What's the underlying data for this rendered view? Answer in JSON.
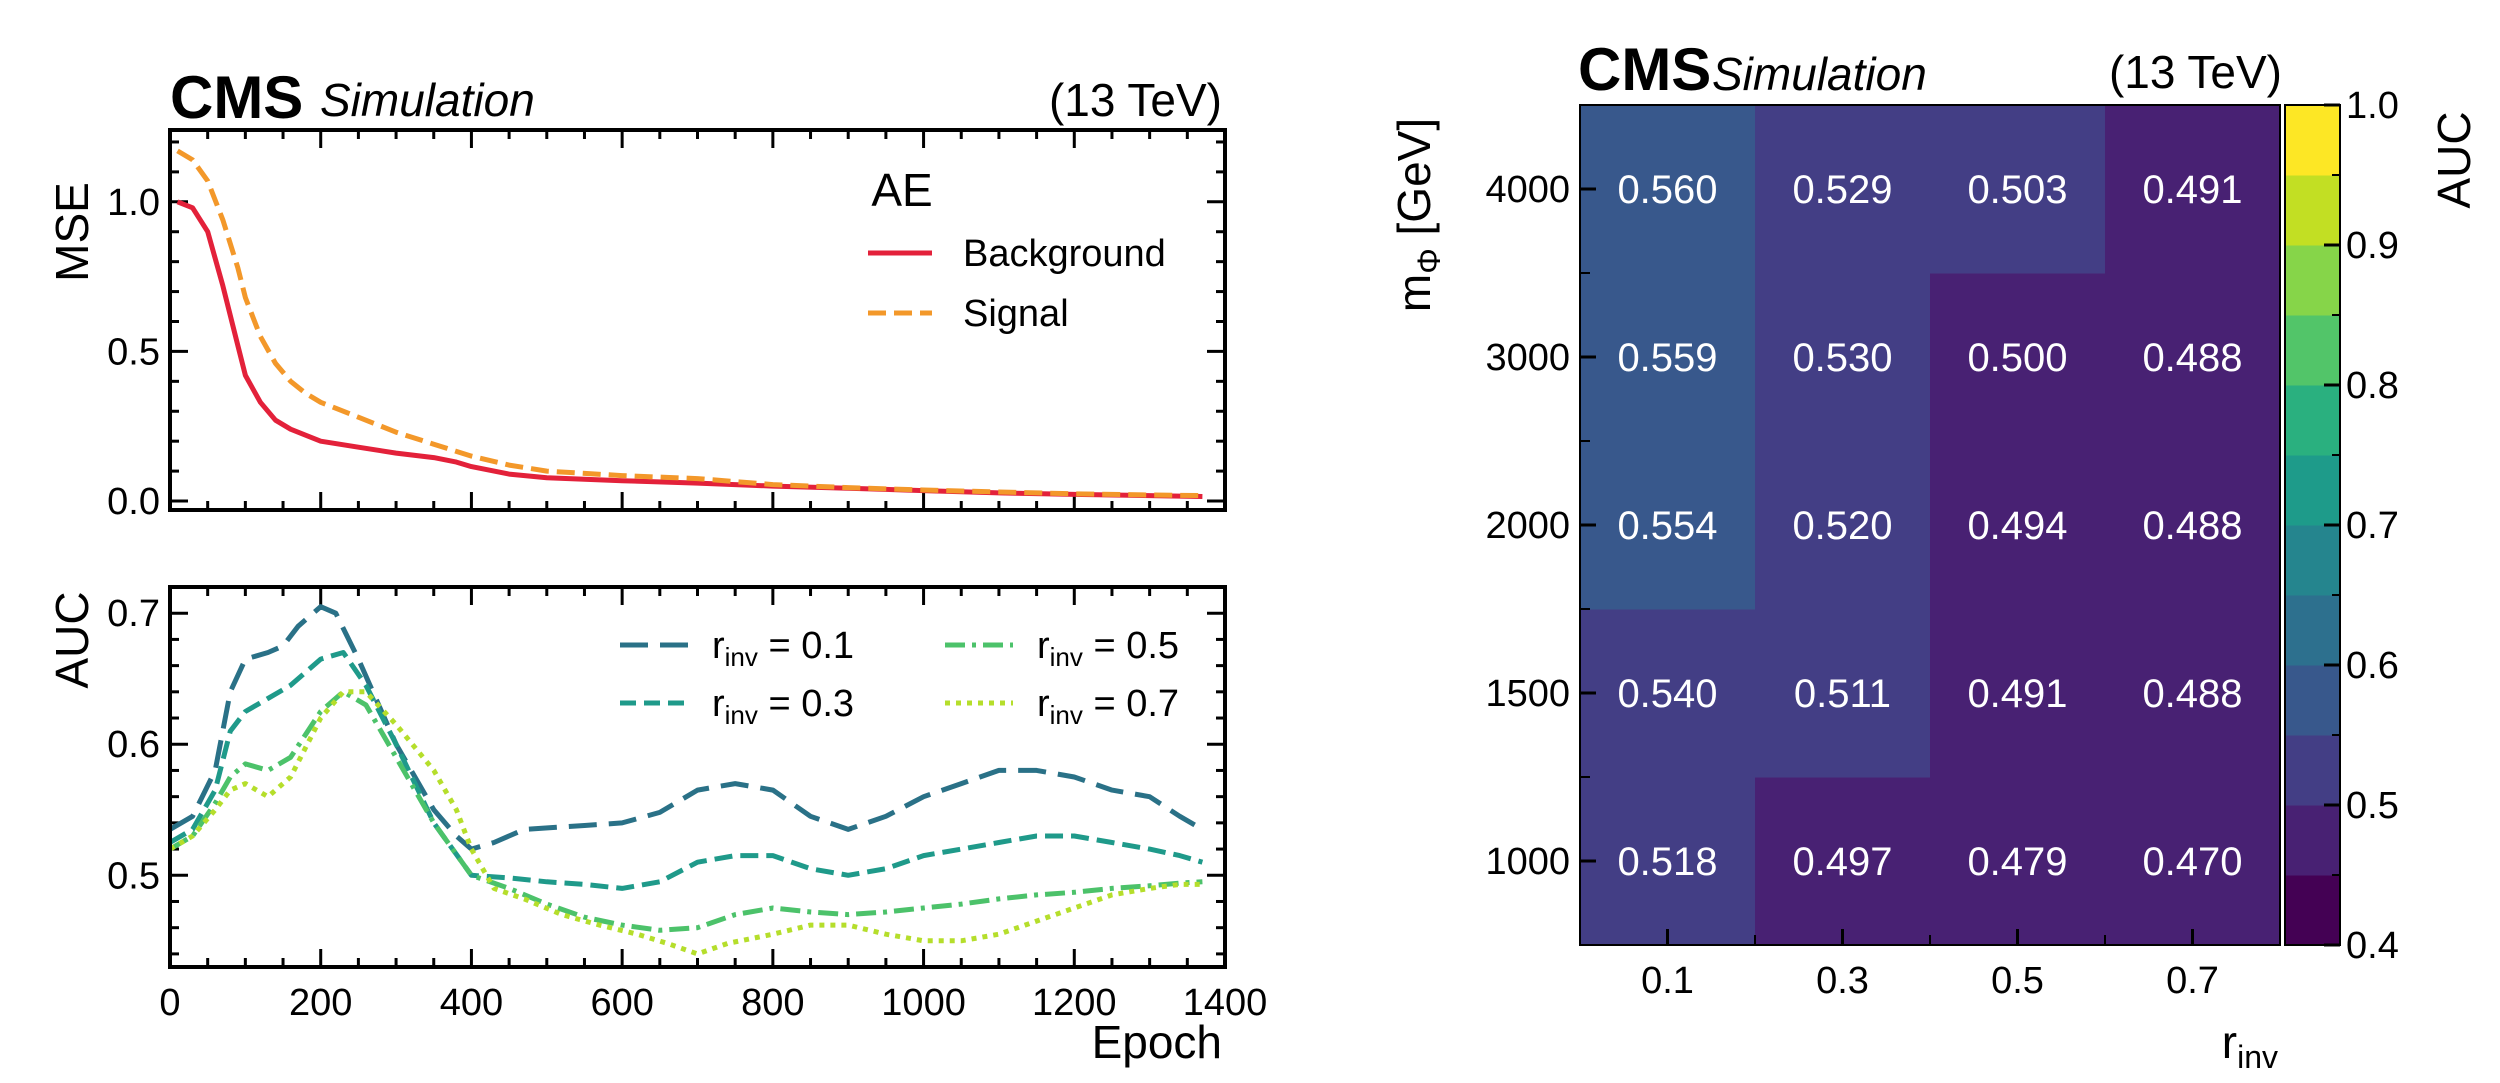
{
  "chart_data": [
    {
      "type": "line",
      "panel": "mse",
      "experiment": "CMS",
      "label": "Simulation",
      "energy": "(13 TeV)",
      "xlabel": "",
      "ylabel": "MSE",
      "xlim": [
        0,
        1400
      ],
      "ylim": [
        -0.03,
        1.24
      ],
      "yticks": [
        0.0,
        0.5,
        1.0
      ],
      "ytick_labels": [
        "0.0",
        "0.5",
        "1.0"
      ],
      "legend_title": "AE",
      "series": [
        {
          "name": "Background",
          "color": "#e3213a",
          "style": "solid",
          "points": [
            [
              10,
              1.0
            ],
            [
              30,
              0.98
            ],
            [
              50,
              0.9
            ],
            [
              70,
              0.72
            ],
            [
              90,
              0.52
            ],
            [
              100,
              0.42
            ],
            [
              120,
              0.33
            ],
            [
              140,
              0.27
            ],
            [
              160,
              0.24
            ],
            [
              180,
              0.22
            ],
            [
              200,
              0.2
            ],
            [
              250,
              0.18
            ],
            [
              300,
              0.16
            ],
            [
              350,
              0.145
            ],
            [
              380,
              0.13
            ],
            [
              400,
              0.115
            ],
            [
              450,
              0.09
            ],
            [
              500,
              0.078
            ],
            [
              600,
              0.068
            ],
            [
              700,
              0.06
            ],
            [
              800,
              0.05
            ],
            [
              900,
              0.043
            ],
            [
              1000,
              0.035
            ],
            [
              1100,
              0.027
            ],
            [
              1200,
              0.022
            ],
            [
              1300,
              0.018
            ],
            [
              1370,
              0.015
            ]
          ]
        },
        {
          "name": "Signal",
          "color": "#f3982a",
          "style": "dashed",
          "points": [
            [
              10,
              1.17
            ],
            [
              30,
              1.14
            ],
            [
              50,
              1.07
            ],
            [
              70,
              0.94
            ],
            [
              90,
              0.78
            ],
            [
              100,
              0.68
            ],
            [
              120,
              0.55
            ],
            [
              140,
              0.46
            ],
            [
              160,
              0.4
            ],
            [
              180,
              0.36
            ],
            [
              200,
              0.33
            ],
            [
              250,
              0.28
            ],
            [
              300,
              0.23
            ],
            [
              350,
              0.19
            ],
            [
              400,
              0.15
            ],
            [
              450,
              0.12
            ],
            [
              500,
              0.1
            ],
            [
              600,
              0.085
            ],
            [
              700,
              0.075
            ],
            [
              800,
              0.055
            ],
            [
              900,
              0.045
            ],
            [
              1000,
              0.037
            ],
            [
              1100,
              0.03
            ],
            [
              1200,
              0.024
            ],
            [
              1300,
              0.02
            ],
            [
              1370,
              0.018
            ]
          ]
        }
      ]
    },
    {
      "type": "line",
      "panel": "auc",
      "xlabel": "Epoch",
      "ylabel": "AUC",
      "xlim": [
        0,
        1400
      ],
      "ylim": [
        0.43,
        0.72
      ],
      "xticks": [
        0,
        200,
        400,
        600,
        800,
        1000,
        1200,
        1400
      ],
      "xtick_labels": [
        "0",
        "200",
        "400",
        "600",
        "800",
        "1000",
        "1200",
        "1400"
      ],
      "yticks": [
        0.5,
        0.6,
        0.7
      ],
      "ytick_labels": [
        "0.5",
        "0.6",
        "0.7"
      ],
      "series": [
        {
          "name": "r_inv = 0.1",
          "name_main": "r",
          "name_sub": "inv",
          "name_rest": " = 0.1",
          "color": "#2a7187",
          "style": "longdash",
          "points": [
            [
              0,
              0.535
            ],
            [
              30,
              0.545
            ],
            [
              60,
              0.58
            ],
            [
              80,
              0.64
            ],
            [
              100,
              0.665
            ],
            [
              130,
              0.67
            ],
            [
              150,
              0.675
            ],
            [
              170,
              0.69
            ],
            [
              200,
              0.705
            ],
            [
              220,
              0.7
            ],
            [
              250,
              0.665
            ],
            [
              300,
              0.6
            ],
            [
              350,
              0.55
            ],
            [
              380,
              0.53
            ],
            [
              400,
              0.52
            ],
            [
              430,
              0.525
            ],
            [
              470,
              0.535
            ],
            [
              550,
              0.538
            ],
            [
              600,
              0.54
            ],
            [
              650,
              0.548
            ],
            [
              700,
              0.565
            ],
            [
              750,
              0.57
            ],
            [
              800,
              0.565
            ],
            [
              850,
              0.545
            ],
            [
              900,
              0.535
            ],
            [
              950,
              0.545
            ],
            [
              1000,
              0.56
            ],
            [
              1050,
              0.57
            ],
            [
              1100,
              0.58
            ],
            [
              1150,
              0.58
            ],
            [
              1200,
              0.575
            ],
            [
              1250,
              0.565
            ],
            [
              1300,
              0.56
            ],
            [
              1340,
              0.545
            ],
            [
              1370,
              0.535
            ]
          ]
        },
        {
          "name": "r_inv = 0.3",
          "name_main": "r",
          "name_sub": "inv",
          "name_rest": " = 0.3",
          "color": "#1f9a8a",
          "style": "dashed",
          "points": [
            [
              0,
              0.525
            ],
            [
              30,
              0.535
            ],
            [
              60,
              0.565
            ],
            [
              80,
              0.61
            ],
            [
              100,
              0.625
            ],
            [
              130,
              0.635
            ],
            [
              160,
              0.645
            ],
            [
              200,
              0.665
            ],
            [
              230,
              0.67
            ],
            [
              260,
              0.645
            ],
            [
              300,
              0.6
            ],
            [
              350,
              0.54
            ],
            [
              400,
              0.5
            ],
            [
              450,
              0.498
            ],
            [
              500,
              0.495
            ],
            [
              550,
              0.493
            ],
            [
              600,
              0.49
            ],
            [
              650,
              0.495
            ],
            [
              700,
              0.51
            ],
            [
              750,
              0.515
            ],
            [
              800,
              0.515
            ],
            [
              850,
              0.505
            ],
            [
              900,
              0.5
            ],
            [
              950,
              0.505
            ],
            [
              1000,
              0.515
            ],
            [
              1050,
              0.52
            ],
            [
              1100,
              0.525
            ],
            [
              1150,
              0.53
            ],
            [
              1200,
              0.53
            ],
            [
              1250,
              0.525
            ],
            [
              1300,
              0.52
            ],
            [
              1340,
              0.515
            ],
            [
              1370,
              0.51
            ]
          ]
        },
        {
          "name": "r_inv = 0.5",
          "name_main": "r",
          "name_sub": "inv",
          "name_rest": " = 0.5",
          "color": "#4cc26a",
          "style": "dashdot",
          "points": [
            [
              0,
              0.52
            ],
            [
              30,
              0.53
            ],
            [
              60,
              0.555
            ],
            [
              80,
              0.575
            ],
            [
              100,
              0.585
            ],
            [
              130,
              0.58
            ],
            [
              160,
              0.59
            ],
            [
              200,
              0.625
            ],
            [
              230,
              0.64
            ],
            [
              260,
              0.63
            ],
            [
              300,
              0.59
            ],
            [
              350,
              0.54
            ],
            [
              400,
              0.5
            ],
            [
              450,
              0.49
            ],
            [
              500,
              0.478
            ],
            [
              550,
              0.468
            ],
            [
              600,
              0.462
            ],
            [
              650,
              0.458
            ],
            [
              700,
              0.46
            ],
            [
              750,
              0.47
            ],
            [
              800,
              0.475
            ],
            [
              850,
              0.472
            ],
            [
              900,
              0.47
            ],
            [
              950,
              0.472
            ],
            [
              1000,
              0.475
            ],
            [
              1050,
              0.478
            ],
            [
              1100,
              0.482
            ],
            [
              1150,
              0.485
            ],
            [
              1200,
              0.487
            ],
            [
              1250,
              0.49
            ],
            [
              1300,
              0.492
            ],
            [
              1340,
              0.494
            ],
            [
              1370,
              0.495
            ]
          ]
        },
        {
          "name": "r_inv = 0.7",
          "name_main": "r",
          "name_sub": "inv",
          "name_rest": " = 0.7",
          "color": "#b5de2b",
          "style": "dotted",
          "points": [
            [
              0,
              0.52
            ],
            [
              30,
              0.53
            ],
            [
              60,
              0.55
            ],
            [
              80,
              0.565
            ],
            [
              100,
              0.57
            ],
            [
              130,
              0.56
            ],
            [
              160,
              0.575
            ],
            [
              200,
              0.62
            ],
            [
              230,
              0.64
            ],
            [
              260,
              0.64
            ],
            [
              300,
              0.615
            ],
            [
              350,
              0.58
            ],
            [
              380,
              0.55
            ],
            [
              400,
              0.52
            ],
            [
              430,
              0.49
            ],
            [
              470,
              0.482
            ],
            [
              520,
              0.47
            ],
            [
              570,
              0.462
            ],
            [
              620,
              0.455
            ],
            [
              660,
              0.448
            ],
            [
              700,
              0.44
            ],
            [
              740,
              0.448
            ],
            [
              800,
              0.455
            ],
            [
              850,
              0.462
            ],
            [
              900,
              0.462
            ],
            [
              950,
              0.455
            ],
            [
              1000,
              0.45
            ],
            [
              1050,
              0.45
            ],
            [
              1100,
              0.455
            ],
            [
              1150,
              0.465
            ],
            [
              1200,
              0.475
            ],
            [
              1250,
              0.485
            ],
            [
              1300,
              0.49
            ],
            [
              1340,
              0.493
            ],
            [
              1370,
              0.493
            ]
          ]
        }
      ]
    },
    {
      "type": "heatmap",
      "experiment": "CMS",
      "label": "Simulation",
      "energy": "(13 TeV)",
      "xlabel_main": "r",
      "xlabel_sub": "inv",
      "ylabel_main": "m",
      "ylabel_sub": "Φ",
      "ylabel_rest": " [GeV]",
      "x_categories": [
        "0.1",
        "0.3",
        "0.5",
        "0.7"
      ],
      "y_categories": [
        "1000",
        "1500",
        "2000",
        "3000",
        "4000"
      ],
      "values": [
        [
          0.518,
          0.497,
          0.479,
          0.47
        ],
        [
          0.54,
          0.511,
          0.491,
          0.488
        ],
        [
          0.554,
          0.52,
          0.494,
          0.488
        ],
        [
          0.559,
          0.53,
          0.5,
          0.488
        ],
        [
          0.56,
          0.529,
          0.503,
          0.491
        ]
      ],
      "colorbar_label": "AUC",
      "colorbar_range": [
        0.4,
        1.0
      ],
      "colorbar_ticks": [
        "0.4",
        "0.5",
        "0.6",
        "0.7",
        "0.8",
        "0.9",
        "1.0"
      ],
      "colormap": [
        "#440154",
        "#482173",
        "#433e85",
        "#38588c",
        "#2d708e",
        "#25858e",
        "#1e9b8a",
        "#2ab07f",
        "#52c569",
        "#86d549",
        "#c2df23",
        "#fde725"
      ]
    }
  ]
}
